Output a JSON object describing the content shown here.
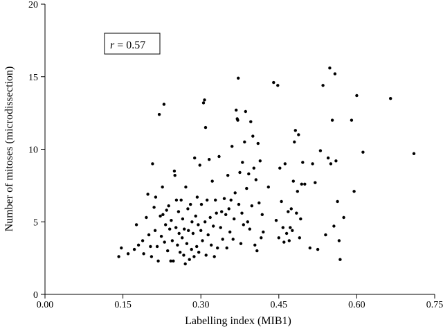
{
  "chart_data": {
    "type": "scatter",
    "title": "",
    "xlabel": "Labelling index (MIB1)",
    "ylabel": "Number of mitoses (microdissection)",
    "xlim": [
      0,
      0.75
    ],
    "ylim": [
      0,
      20
    ],
    "xticks": [
      "0.00",
      "0.15",
      "0.30",
      "0.45",
      "0.60",
      "0.75"
    ],
    "yticks": [
      "0",
      "5",
      "10",
      "15",
      "20"
    ],
    "annotation": {
      "italic": "r",
      "rest": " = 0.57"
    },
    "grid": false,
    "series": [
      {
        "points": [
          [
            0.142,
            2.6
          ],
          [
            0.147,
            3.2
          ],
          [
            0.16,
            2.8
          ],
          [
            0.172,
            3.1
          ],
          [
            0.176,
            4.8
          ],
          [
            0.18,
            3.4
          ],
          [
            0.188,
            3.7
          ],
          [
            0.19,
            2.8
          ],
          [
            0.195,
            5.3
          ],
          [
            0.198,
            6.9
          ],
          [
            0.2,
            4.1
          ],
          [
            0.203,
            3.3
          ],
          [
            0.205,
            2.6
          ],
          [
            0.207,
            9.0
          ],
          [
            0.21,
            6.0
          ],
          [
            0.212,
            4.4
          ],
          [
            0.213,
            6.7
          ],
          [
            0.216,
            3.3
          ],
          [
            0.218,
            2.3
          ],
          [
            0.22,
            12.4
          ],
          [
            0.222,
            5.4
          ],
          [
            0.224,
            4.0
          ],
          [
            0.226,
            7.4
          ],
          [
            0.227,
            5.5
          ],
          [
            0.229,
            13.1
          ],
          [
            0.23,
            3.6
          ],
          [
            0.232,
            4.8
          ],
          [
            0.234,
            5.8
          ],
          [
            0.236,
            3.0
          ],
          [
            0.238,
            6.1
          ],
          [
            0.24,
            4.5
          ],
          [
            0.242,
            2.3
          ],
          [
            0.243,
            5.1
          ],
          [
            0.245,
            3.7
          ],
          [
            0.247,
            2.3
          ],
          [
            0.249,
            8.5
          ],
          [
            0.25,
            8.2
          ],
          [
            0.252,
            4.6
          ],
          [
            0.253,
            6.5
          ],
          [
            0.255,
            3.4
          ],
          [
            0.257,
            5.7
          ],
          [
            0.258,
            4.2
          ],
          [
            0.26,
            2.9
          ],
          [
            0.262,
            6.5
          ],
          [
            0.264,
            3.9
          ],
          [
            0.265,
            5.2
          ],
          [
            0.267,
            2.7
          ],
          [
            0.268,
            4.5
          ],
          [
            0.27,
            2.1
          ],
          [
            0.271,
            7.4
          ],
          [
            0.273,
            3.5
          ],
          [
            0.275,
            5.9
          ],
          [
            0.276,
            4.4
          ],
          [
            0.278,
            2.4
          ],
          [
            0.28,
            6.2
          ],
          [
            0.282,
            3.1
          ],
          [
            0.283,
            5.0
          ],
          [
            0.285,
            4.2
          ],
          [
            0.287,
            2.6
          ],
          [
            0.288,
            9.4
          ],
          [
            0.29,
            5.4
          ],
          [
            0.292,
            3.3
          ],
          [
            0.293,
            6.7
          ],
          [
            0.295,
            4.8
          ],
          [
            0.296,
            2.9
          ],
          [
            0.298,
            8.9
          ],
          [
            0.3,
            4.4
          ],
          [
            0.301,
            6.2
          ],
          [
            0.303,
            3.7
          ],
          [
            0.305,
            13.2
          ],
          [
            0.307,
            13.4
          ],
          [
            0.308,
            5.0
          ],
          [
            0.309,
            11.5
          ],
          [
            0.31,
            2.7
          ],
          [
            0.312,
            6.5
          ],
          [
            0.314,
            4.1
          ],
          [
            0.316,
            9.3
          ],
          [
            0.318,
            5.3
          ],
          [
            0.32,
            3.4
          ],
          [
            0.322,
            7.8
          ],
          [
            0.324,
            4.7
          ],
          [
            0.326,
            2.6
          ],
          [
            0.328,
            6.5
          ],
          [
            0.33,
            5.6
          ],
          [
            0.332,
            3.2
          ],
          [
            0.335,
            9.5
          ],
          [
            0.338,
            4.6
          ],
          [
            0.34,
            5.7
          ],
          [
            0.342,
            3.8
          ],
          [
            0.345,
            6.6
          ],
          [
            0.348,
            5.5
          ],
          [
            0.35,
            3.2
          ],
          [
            0.352,
            8.2
          ],
          [
            0.354,
            5.9
          ],
          [
            0.356,
            4.3
          ],
          [
            0.358,
            6.5
          ],
          [
            0.36,
            10.2
          ],
          [
            0.362,
            3.8
          ],
          [
            0.364,
            5.2
          ],
          [
            0.366,
            7.0
          ],
          [
            0.368,
            12.7
          ],
          [
            0.37,
            12.1
          ],
          [
            0.371,
            12.0
          ],
          [
            0.372,
            14.9
          ],
          [
            0.373,
            6.2
          ],
          [
            0.375,
            8.4
          ],
          [
            0.377,
            3.5
          ],
          [
            0.379,
            5.6
          ],
          [
            0.38,
            9.1
          ],
          [
            0.382,
            4.8
          ],
          [
            0.384,
            10.5
          ],
          [
            0.386,
            12.6
          ],
          [
            0.388,
            7.3
          ],
          [
            0.39,
            5.0
          ],
          [
            0.392,
            8.3
          ],
          [
            0.394,
            4.5
          ],
          [
            0.396,
            11.9
          ],
          [
            0.398,
            6.1
          ],
          [
            0.4,
            10.9
          ],
          [
            0.402,
            8.7
          ],
          [
            0.404,
            3.4
          ],
          [
            0.406,
            7.9
          ],
          [
            0.408,
            3.0
          ],
          [
            0.41,
            10.4
          ],
          [
            0.412,
            6.3
          ],
          [
            0.414,
            9.2
          ],
          [
            0.416,
            3.9
          ],
          [
            0.418,
            5.5
          ],
          [
            0.42,
            4.3
          ],
          [
            0.43,
            7.4
          ],
          [
            0.44,
            14.6
          ],
          [
            0.445,
            5.1
          ],
          [
            0.448,
            14.4
          ],
          [
            0.45,
            3.9
          ],
          [
            0.452,
            8.7
          ],
          [
            0.455,
            6.4
          ],
          [
            0.458,
            4.6
          ],
          [
            0.46,
            3.6
          ],
          [
            0.462,
            9.0
          ],
          [
            0.465,
            4.2
          ],
          [
            0.468,
            5.7
          ],
          [
            0.47,
            3.7
          ],
          [
            0.472,
            4.6
          ],
          [
            0.474,
            5.9
          ],
          [
            0.476,
            4.4
          ],
          [
            0.478,
            7.8
          ],
          [
            0.48,
            10.5
          ],
          [
            0.482,
            11.3
          ],
          [
            0.484,
            5.6
          ],
          [
            0.486,
            7.1
          ],
          [
            0.488,
            11.0
          ],
          [
            0.49,
            3.9
          ],
          [
            0.492,
            5.2
          ],
          [
            0.494,
            7.6
          ],
          [
            0.496,
            9.1
          ],
          [
            0.5,
            7.6
          ],
          [
            0.51,
            3.2
          ],
          [
            0.515,
            9.0
          ],
          [
            0.52,
            7.7
          ],
          [
            0.525,
            3.1
          ],
          [
            0.53,
            9.9
          ],
          [
            0.535,
            14.4
          ],
          [
            0.54,
            4.1
          ],
          [
            0.545,
            9.4
          ],
          [
            0.548,
            15.6
          ],
          [
            0.55,
            9.0
          ],
          [
            0.553,
            12.0
          ],
          [
            0.556,
            4.7
          ],
          [
            0.558,
            15.2
          ],
          [
            0.56,
            9.2
          ],
          [
            0.563,
            6.4
          ],
          [
            0.566,
            3.7
          ],
          [
            0.568,
            2.4
          ],
          [
            0.575,
            5.3
          ],
          [
            0.59,
            12.0
          ],
          [
            0.595,
            7.1
          ],
          [
            0.6,
            13.7
          ],
          [
            0.612,
            9.8
          ],
          [
            0.665,
            13.5
          ],
          [
            0.71,
            9.7
          ]
        ]
      }
    ]
  }
}
